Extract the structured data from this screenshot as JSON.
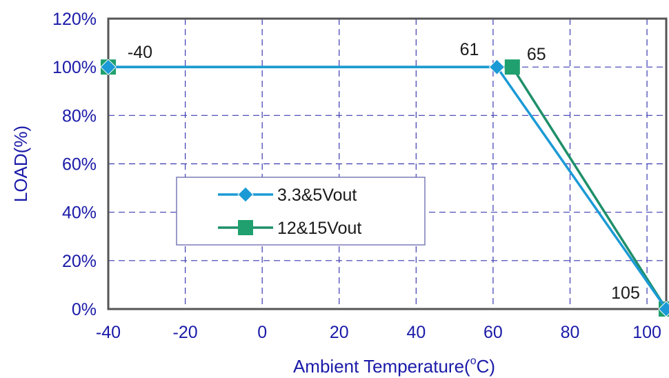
{
  "chart_data": {
    "type": "line",
    "xlabel": "Ambient Temperature(",
    "xlabel_sup": "o",
    "xlabel_end": "C)",
    "ylabel": "LOAD(%)",
    "xlim": [
      -40,
      105
    ],
    "ylim": [
      0,
      120
    ],
    "x_ticks": [
      -40,
      -20,
      0,
      20,
      40,
      60,
      80,
      100
    ],
    "x_tick_labels": [
      "-40",
      "-20",
      "0",
      "20",
      "40",
      "60",
      "80",
      "100"
    ],
    "y_ticks": [
      0,
      20,
      40,
      60,
      80,
      100,
      120
    ],
    "y_tick_labels": [
      "0%",
      "20%",
      "40%",
      "60%",
      "80%",
      "100%",
      "120%"
    ],
    "grid": true,
    "legend_position": "center-left",
    "series": [
      {
        "name": "3.3&5Vout",
        "marker": "diamond",
        "color": "#1B9AD6",
        "points": [
          [
            -40,
            100
          ],
          [
            61,
            100
          ],
          [
            105,
            0
          ]
        ]
      },
      {
        "name": "12&15Vout",
        "marker": "square",
        "color": "#1E8F6A",
        "points": [
          [
            -40,
            100
          ],
          [
            65,
            100
          ],
          [
            105,
            0
          ]
        ]
      }
    ],
    "annotations": [
      {
        "text": "-40",
        "x": -40,
        "y": 100
      },
      {
        "text": "61",
        "x": 61,
        "y": 100
      },
      {
        "text": "65",
        "x": 65,
        "y": 100
      },
      {
        "text": "105",
        "x": 105,
        "y": 0
      }
    ]
  },
  "colors": {
    "axis_text": "#1A1AA8",
    "grid": "#3A3AB0",
    "frame": "#555555",
    "marker_fill_square": "#1FA06E"
  }
}
